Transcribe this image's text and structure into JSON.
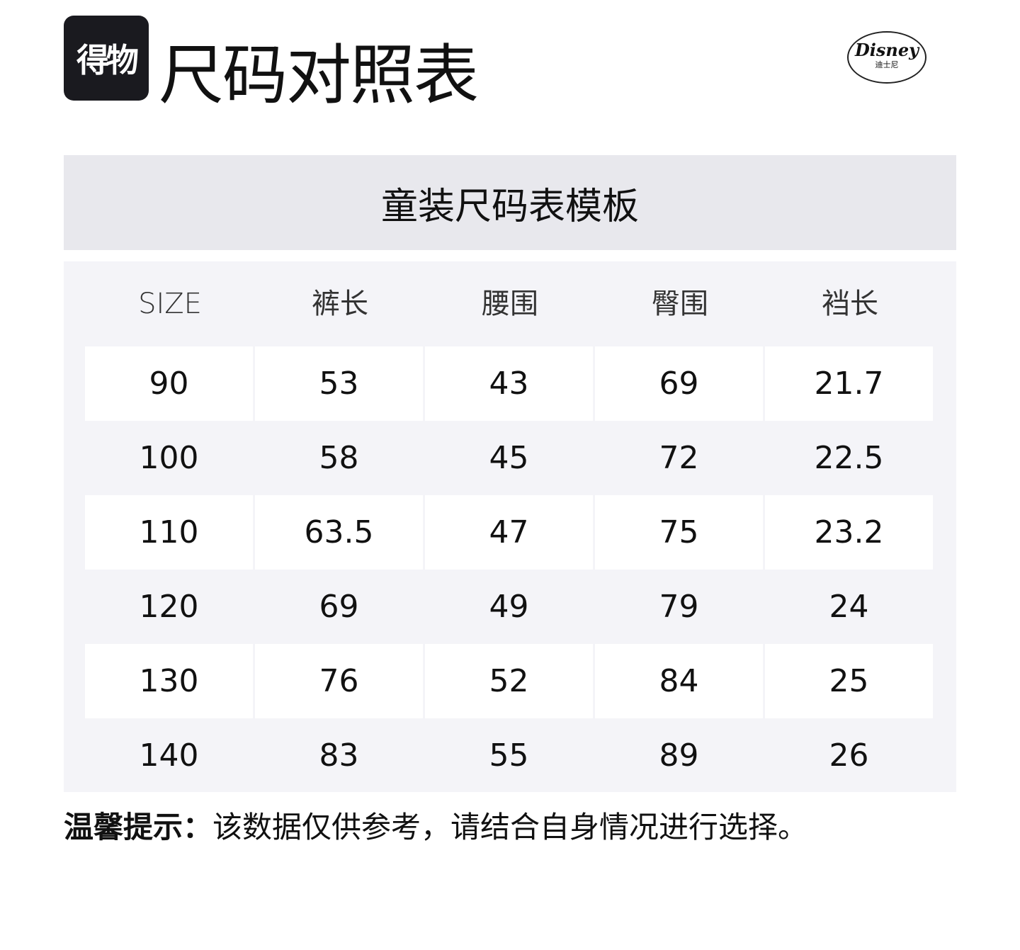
{
  "header": {
    "brand_logo": "得物",
    "title": "尺码对照表",
    "partner_logo": "DISNEY",
    "partner_logo_cn": "迪士尼"
  },
  "table": {
    "caption": "童装尺码表模板",
    "columns": [
      "SIZE",
      "裤长",
      "腰围",
      "臀围",
      "裆长"
    ],
    "rows": [
      [
        "90",
        "53",
        "43",
        "69",
        "21.7"
      ],
      [
        "100",
        "58",
        "45",
        "72",
        "22.5"
      ],
      [
        "110",
        "63.5",
        "47",
        "75",
        "23.2"
      ],
      [
        "120",
        "69",
        "49",
        "79",
        "24"
      ],
      [
        "130",
        "76",
        "52",
        "84",
        "25"
      ],
      [
        "140",
        "83",
        "55",
        "89",
        "26"
      ]
    ]
  },
  "footer": {
    "tip_label": "温馨提示：",
    "tip_text": "该数据仅供参考，请结合自身情况进行选择。"
  }
}
